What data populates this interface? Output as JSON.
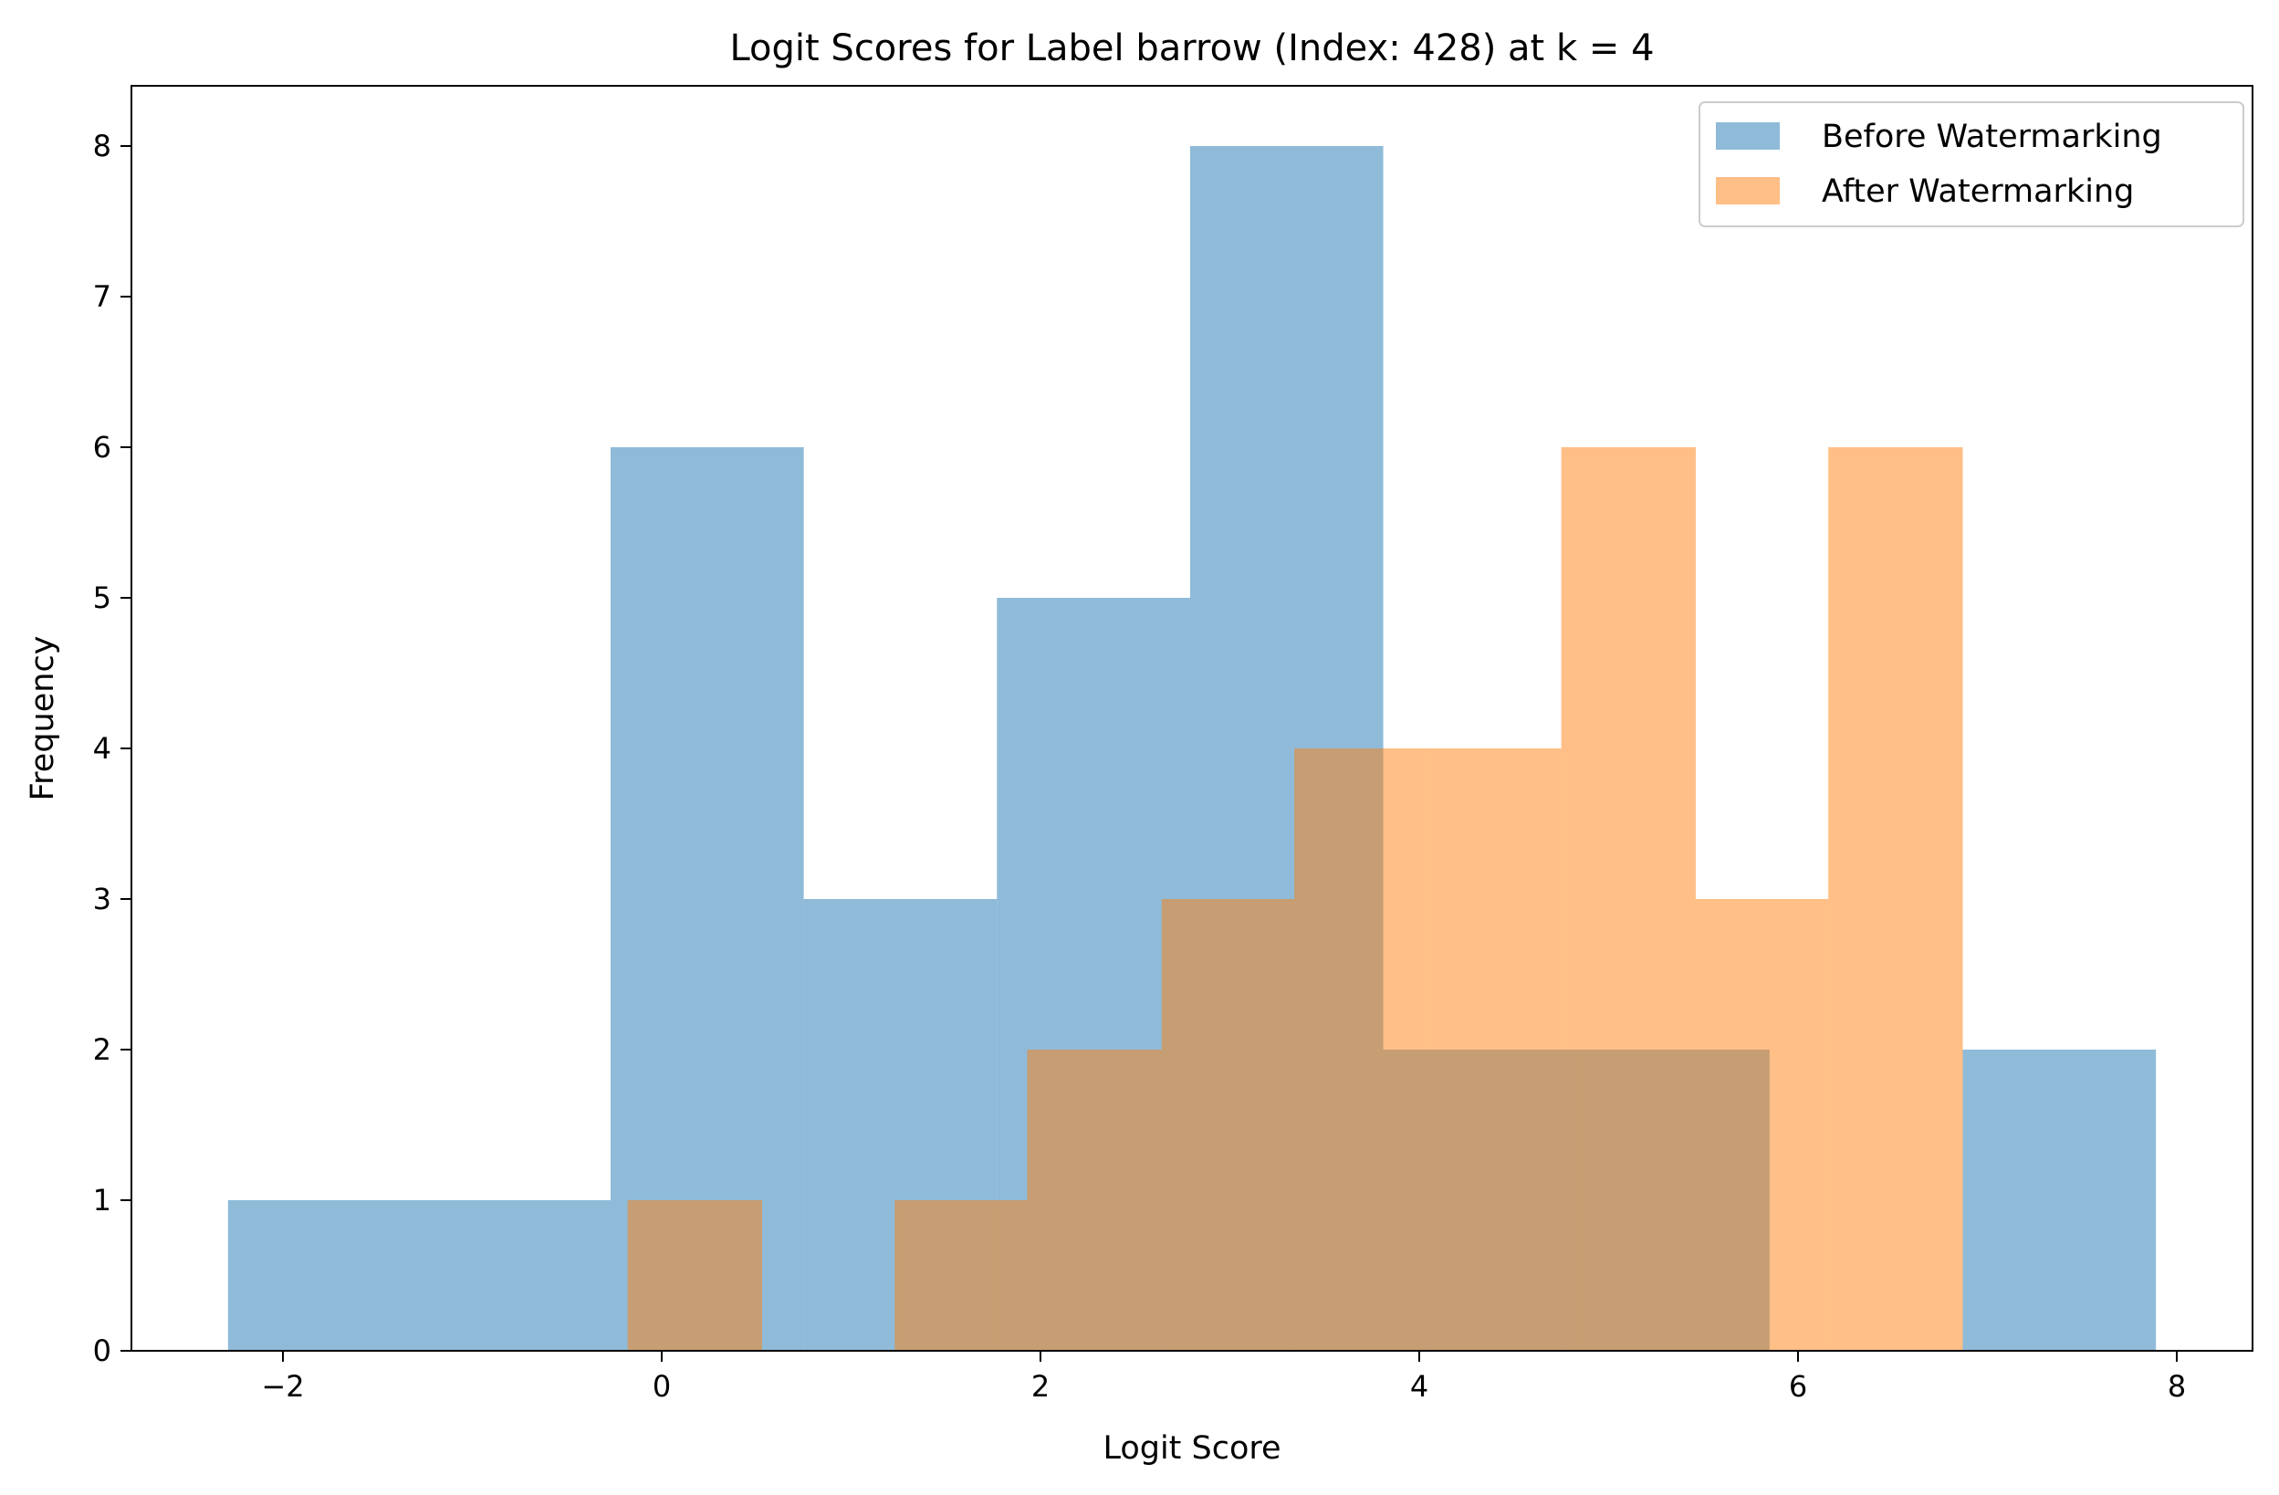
{
  "chart_data": {
    "type": "histogram",
    "title": "Logit Scores for Label barrow (Index: 428) at k = 4",
    "xlabel": "Logit Score",
    "ylabel": "Frequency",
    "xlim": [
      -2.8,
      8.4
    ],
    "ylim": [
      0,
      8.4
    ],
    "x_ticks": [
      -2,
      0,
      2,
      4,
      6,
      8
    ],
    "x_tick_labels": [
      "−2",
      "0",
      "2",
      "4",
      "6",
      "8"
    ],
    "y_ticks": [
      0,
      1,
      2,
      3,
      4,
      5,
      6,
      7,
      8
    ],
    "y_tick_labels": [
      "0",
      "1",
      "2",
      "3",
      "4",
      "5",
      "6",
      "7",
      "8"
    ],
    "grid": false,
    "legend_position": "top-right",
    "series": [
      {
        "name": "Before Watermarking",
        "color": "#1f77b4",
        "opacity": 0.5,
        "bin_edges": [
          -2.29,
          -0.27,
          0.75,
          1.77,
          2.79,
          3.81,
          4.83,
          5.85,
          6.87,
          7.89
        ],
        "counts": [
          1,
          6,
          3,
          5,
          8,
          2,
          2,
          0,
          2
        ]
      },
      {
        "name": "After Watermarking",
        "color": "#ff7f0e",
        "opacity": 0.5,
        "bin_edges": [
          -0.18,
          0.53,
          1.23,
          1.93,
          2.64,
          3.34,
          4.05,
          4.75,
          5.46,
          6.16,
          6.87
        ],
        "counts": [
          1,
          0,
          1,
          2,
          3,
          4,
          4,
          6,
          3,
          6
        ]
      }
    ]
  }
}
